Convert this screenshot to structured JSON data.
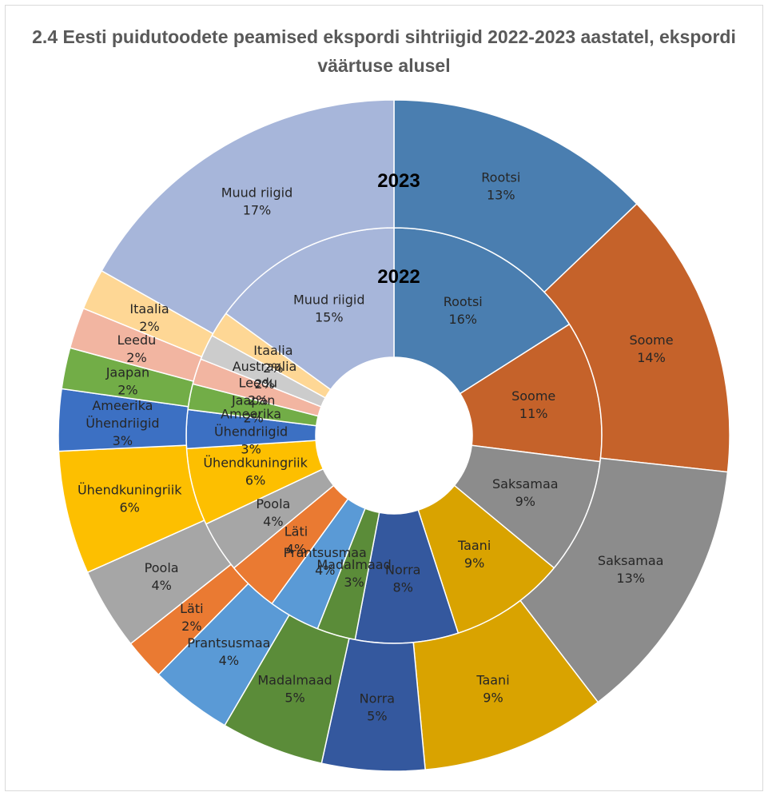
{
  "chart_data": {
    "type": "doughnut",
    "title": "2.4 Eesti puidutoodete peamised ekspordi sihtriigid 2022-2023 aastatel, ekspordi väärtuse alusel",
    "rings": [
      {
        "name": "2022",
        "slices": [
          {
            "label": "Rootsi",
            "value_text": "16%",
            "value": 16,
            "color": "#4a7eb0"
          },
          {
            "label": "Soome",
            "value_text": "11%",
            "value": 11,
            "color": "#c5622a"
          },
          {
            "label": "Saksamaa",
            "value_text": "9%",
            "value": 9,
            "color": "#8c8c8c"
          },
          {
            "label": "Taani",
            "value_text": "9%",
            "value": 9,
            "color": "#d9a300"
          },
          {
            "label": "Norra",
            "value_text": "8%",
            "value": 8,
            "color": "#34589e"
          },
          {
            "label": "Madalmaad",
            "value_text": "3%",
            "value": 3,
            "color": "#5b8c39"
          },
          {
            "label": "Prantsusmaa",
            "value_text": "4%",
            "value": 4,
            "color": "#5a9ad6"
          },
          {
            "label": "Läti",
            "value_text": "4%",
            "value": 4,
            "color": "#ea7a32"
          },
          {
            "label": "Poola",
            "value_text": "4%",
            "value": 4,
            "color": "#a6a6a6"
          },
          {
            "label": "Ühendkuningriik",
            "value_text": "6%",
            "value": 6,
            "color": "#fdbf00"
          },
          {
            "label": "Ameerika Ühendriigid",
            "value_text": "3%",
            "value": 3,
            "color": "#3c70c3"
          },
          {
            "label": "Jaapan",
            "value_text": "2%",
            "value": 2,
            "color": "#72ad47"
          },
          {
            "label": "Leedu",
            "value_text": "2%",
            "value": 2,
            "color": "#f2b5a1"
          },
          {
            "label": "Austraalia",
            "value_text": "2%",
            "value": 2,
            "color": "#cccccc"
          },
          {
            "label": "Itaalia",
            "value_text": "2%",
            "value": 2,
            "color": "#fed795"
          },
          {
            "label": "Muud riigid",
            "value_text": "15%",
            "value": 15,
            "color": "#a7b6da"
          }
        ]
      },
      {
        "name": "2023",
        "slices": [
          {
            "label": "Rootsi",
            "value_text": "13%",
            "value": 13,
            "color": "#4a7eb0"
          },
          {
            "label": "Soome",
            "value_text": "14%",
            "value": 14,
            "color": "#c5622a"
          },
          {
            "label": "Saksamaa",
            "value_text": "13%",
            "value": 13,
            "color": "#8c8c8c"
          },
          {
            "label": "Taani",
            "value_text": "9%",
            "value": 9,
            "color": "#d9a300"
          },
          {
            "label": "Norra",
            "value_text": "5%",
            "value": 5,
            "color": "#34589e"
          },
          {
            "label": "Madalmaad",
            "value_text": "5%",
            "value": 5,
            "color": "#5b8c39"
          },
          {
            "label": "Prantsusmaa",
            "value_text": "4%",
            "value": 4,
            "color": "#5a9ad6"
          },
          {
            "label": "Läti",
            "value_text": "2%",
            "value": 2,
            "color": "#ea7a32"
          },
          {
            "label": "Poola",
            "value_text": "4%",
            "value": 4,
            "color": "#a6a6a6"
          },
          {
            "label": "Ühendkuningriik",
            "value_text": "6%",
            "value": 6,
            "color": "#fdbf00"
          },
          {
            "label": "Ameerika Ühendriigid",
            "value_text": "3%",
            "value": 3,
            "color": "#3c70c3"
          },
          {
            "label": "Jaapan",
            "value_text": "2%",
            "value": 2,
            "color": "#72ad47"
          },
          {
            "label": "Leedu",
            "value_text": "2%",
            "value": 2,
            "color": "#f2b5a1"
          },
          {
            "label": "Itaalia",
            "value_text": "2%",
            "value": 2,
            "color": "#fed795"
          },
          {
            "label": "Muud riigid",
            "value_text": "17%",
            "value": 17,
            "color": "#a7b6da"
          }
        ]
      }
    ],
    "legend": "none"
  }
}
